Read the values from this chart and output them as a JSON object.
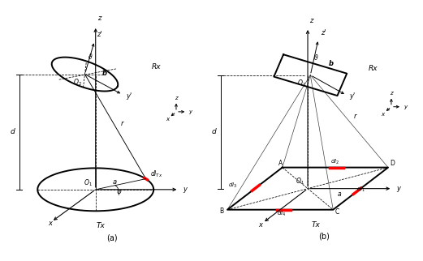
{
  "fig_width": 5.21,
  "fig_height": 3.22,
  "bg_color": "#ffffff",
  "panel_a": {
    "label": "(a)",
    "tx_label": "Tx",
    "rx_label": "Rx"
  },
  "panel_b": {
    "label": "(b)",
    "tx_label": "Tx",
    "rx_label": "Rx"
  }
}
